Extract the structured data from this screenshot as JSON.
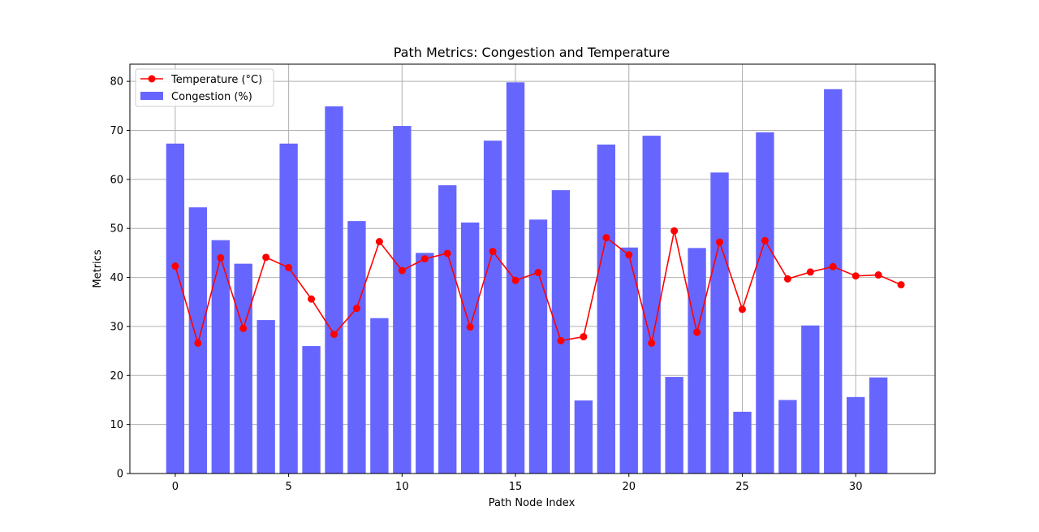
{
  "chart_data": {
    "type": "bar",
    "title": "Path Metrics: Congestion and Temperature",
    "xlabel": "Path Node Index",
    "ylabel": "Metrics",
    "xlim": [
      -2,
      33.5
    ],
    "ylim": [
      0,
      83.5
    ],
    "x_ticks": [
      0,
      5,
      10,
      15,
      20,
      25,
      30
    ],
    "y_ticks": [
      0,
      10,
      20,
      30,
      40,
      50,
      60,
      70,
      80
    ],
    "grid": true,
    "legend_position": "top-left",
    "series": [
      {
        "name": "Congestion (%)",
        "kind": "bar",
        "color": "#6666ff",
        "x": [
          0,
          1,
          2,
          3,
          4,
          5,
          6,
          7,
          8,
          9,
          10,
          11,
          12,
          13,
          14,
          15,
          16,
          17,
          18,
          19,
          20,
          21,
          22,
          23,
          24,
          25,
          26,
          27,
          28,
          29,
          30,
          31
        ],
        "values": [
          67.3,
          54.3,
          47.6,
          42.8,
          31.3,
          67.3,
          26.0,
          74.9,
          51.5,
          31.7,
          70.9,
          45.0,
          58.8,
          51.2,
          67.9,
          79.8,
          51.8,
          57.8,
          14.9,
          67.1,
          46.1,
          68.9,
          19.7,
          46.0,
          61.4,
          12.6,
          69.6,
          15.0,
          30.2,
          78.4,
          15.6,
          19.6
        ]
      },
      {
        "name": "Temperature (°C)",
        "kind": "line",
        "color": "#ff0000",
        "x": [
          0,
          1,
          2,
          3,
          4,
          5,
          6,
          7,
          8,
          9,
          10,
          11,
          12,
          13,
          14,
          15,
          16,
          17,
          18,
          19,
          20,
          21,
          22,
          23,
          24,
          25,
          26,
          27,
          28,
          29,
          30,
          31,
          32
        ],
        "values": [
          42.3,
          26.6,
          44.0,
          29.6,
          44.1,
          42.0,
          35.6,
          28.4,
          33.7,
          47.3,
          41.4,
          43.8,
          44.9,
          29.9,
          45.3,
          39.4,
          41.0,
          27.1,
          27.9,
          48.1,
          44.6,
          26.6,
          49.5,
          28.8,
          47.2,
          33.5,
          47.5,
          39.7,
          41.1,
          42.2,
          40.3,
          40.5,
          38.5
        ]
      }
    ]
  }
}
